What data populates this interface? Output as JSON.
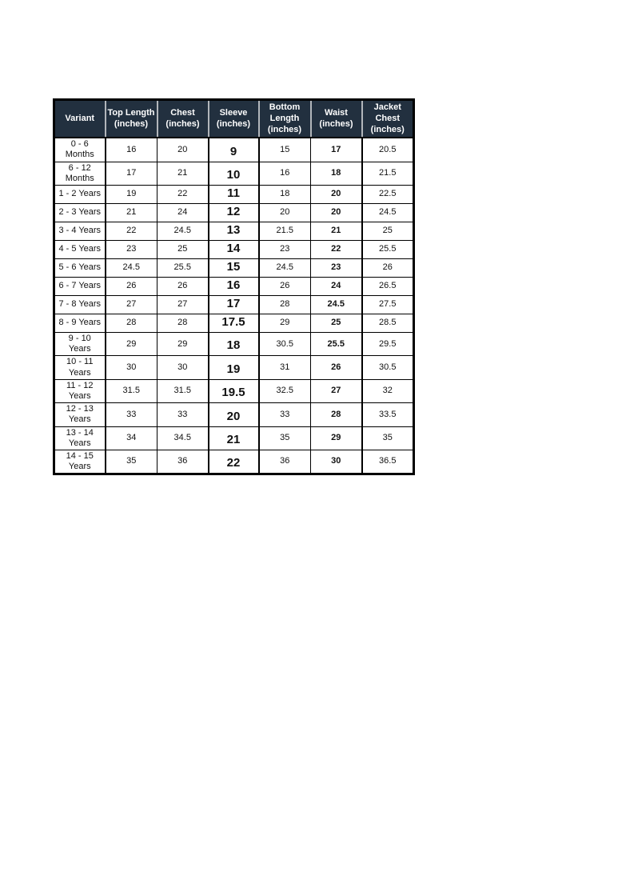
{
  "colors": {
    "header_bg": "#22303f",
    "header_text": "#ffffff",
    "header_separator": "#b2b6bb",
    "border": "#000000",
    "page_bg": "#ffffff"
  },
  "table": {
    "columns": [
      {
        "key": "variant",
        "label": "Variant"
      },
      {
        "key": "top_length",
        "label": "Top Length\n(inches)"
      },
      {
        "key": "chest",
        "label": "Chest\n(inches)"
      },
      {
        "key": "sleeve",
        "label": "Sleeve\n(inches)"
      },
      {
        "key": "bottom_length",
        "label": "Bottom\nLength\n(inches)"
      },
      {
        "key": "waist",
        "label": "Waist\n(inches)"
      },
      {
        "key": "jacket_chest",
        "label": "Jacket Chest\n(inches)"
      }
    ],
    "rows": [
      {
        "variant": "0 - 6 Months",
        "top_length": "16",
        "chest": "20",
        "sleeve": "9",
        "bottom_length": "15",
        "waist": "17",
        "jacket_chest": "20.5"
      },
      {
        "variant": "6 - 12 Months",
        "top_length": "17",
        "chest": "21",
        "sleeve": "10",
        "bottom_length": "16",
        "waist": "18",
        "jacket_chest": "21.5"
      },
      {
        "variant": "1 - 2 Years",
        "top_length": "19",
        "chest": "22",
        "sleeve": "11",
        "bottom_length": "18",
        "waist": "20",
        "jacket_chest": "22.5"
      },
      {
        "variant": "2 - 3 Years",
        "top_length": "21",
        "chest": "24",
        "sleeve": "12",
        "bottom_length": "20",
        "waist": "20",
        "jacket_chest": "24.5"
      },
      {
        "variant": "3 - 4 Years",
        "top_length": "22",
        "chest": "24.5",
        "sleeve": "13",
        "bottom_length": "21.5",
        "waist": "21",
        "jacket_chest": "25"
      },
      {
        "variant": "4 - 5 Years",
        "top_length": "23",
        "chest": "25",
        "sleeve": "14",
        "bottom_length": "23",
        "waist": "22",
        "jacket_chest": "25.5"
      },
      {
        "variant": "5 - 6 Years",
        "top_length": "24.5",
        "chest": "25.5",
        "sleeve": "15",
        "bottom_length": "24.5",
        "waist": "23",
        "jacket_chest": "26"
      },
      {
        "variant": "6 - 7 Years",
        "top_length": "26",
        "chest": "26",
        "sleeve": "16",
        "bottom_length": "26",
        "waist": "24",
        "jacket_chest": "26.5"
      },
      {
        "variant": "7 - 8 Years",
        "top_length": "27",
        "chest": "27",
        "sleeve": "17",
        "bottom_length": "28",
        "waist": "24.5",
        "jacket_chest": "27.5"
      },
      {
        "variant": "8 - 9 Years",
        "top_length": "28",
        "chest": "28",
        "sleeve": "17.5",
        "bottom_length": "29",
        "waist": "25",
        "jacket_chest": "28.5"
      },
      {
        "variant": "9 - 10 Years",
        "top_length": "29",
        "chest": "29",
        "sleeve": "18",
        "bottom_length": "30.5",
        "waist": "25.5",
        "jacket_chest": "29.5"
      },
      {
        "variant": "10 - 11 Years",
        "top_length": "30",
        "chest": "30",
        "sleeve": "19",
        "bottom_length": "31",
        "waist": "26",
        "jacket_chest": "30.5"
      },
      {
        "variant": "11 - 12 Years",
        "top_length": "31.5",
        "chest": "31.5",
        "sleeve": "19.5",
        "bottom_length": "32.5",
        "waist": "27",
        "jacket_chest": "32"
      },
      {
        "variant": "12 - 13 Years",
        "top_length": "33",
        "chest": "33",
        "sleeve": "20",
        "bottom_length": "33",
        "waist": "28",
        "jacket_chest": "33.5"
      },
      {
        "variant": "13 - 14 Years",
        "top_length": "34",
        "chest": "34.5",
        "sleeve": "21",
        "bottom_length": "35",
        "waist": "29",
        "jacket_chest": "35"
      },
      {
        "variant": "14 - 15 Years",
        "top_length": "35",
        "chest": "36",
        "sleeve": "22",
        "bottom_length": "36",
        "waist": "30",
        "jacket_chest": "36.5"
      }
    ]
  }
}
